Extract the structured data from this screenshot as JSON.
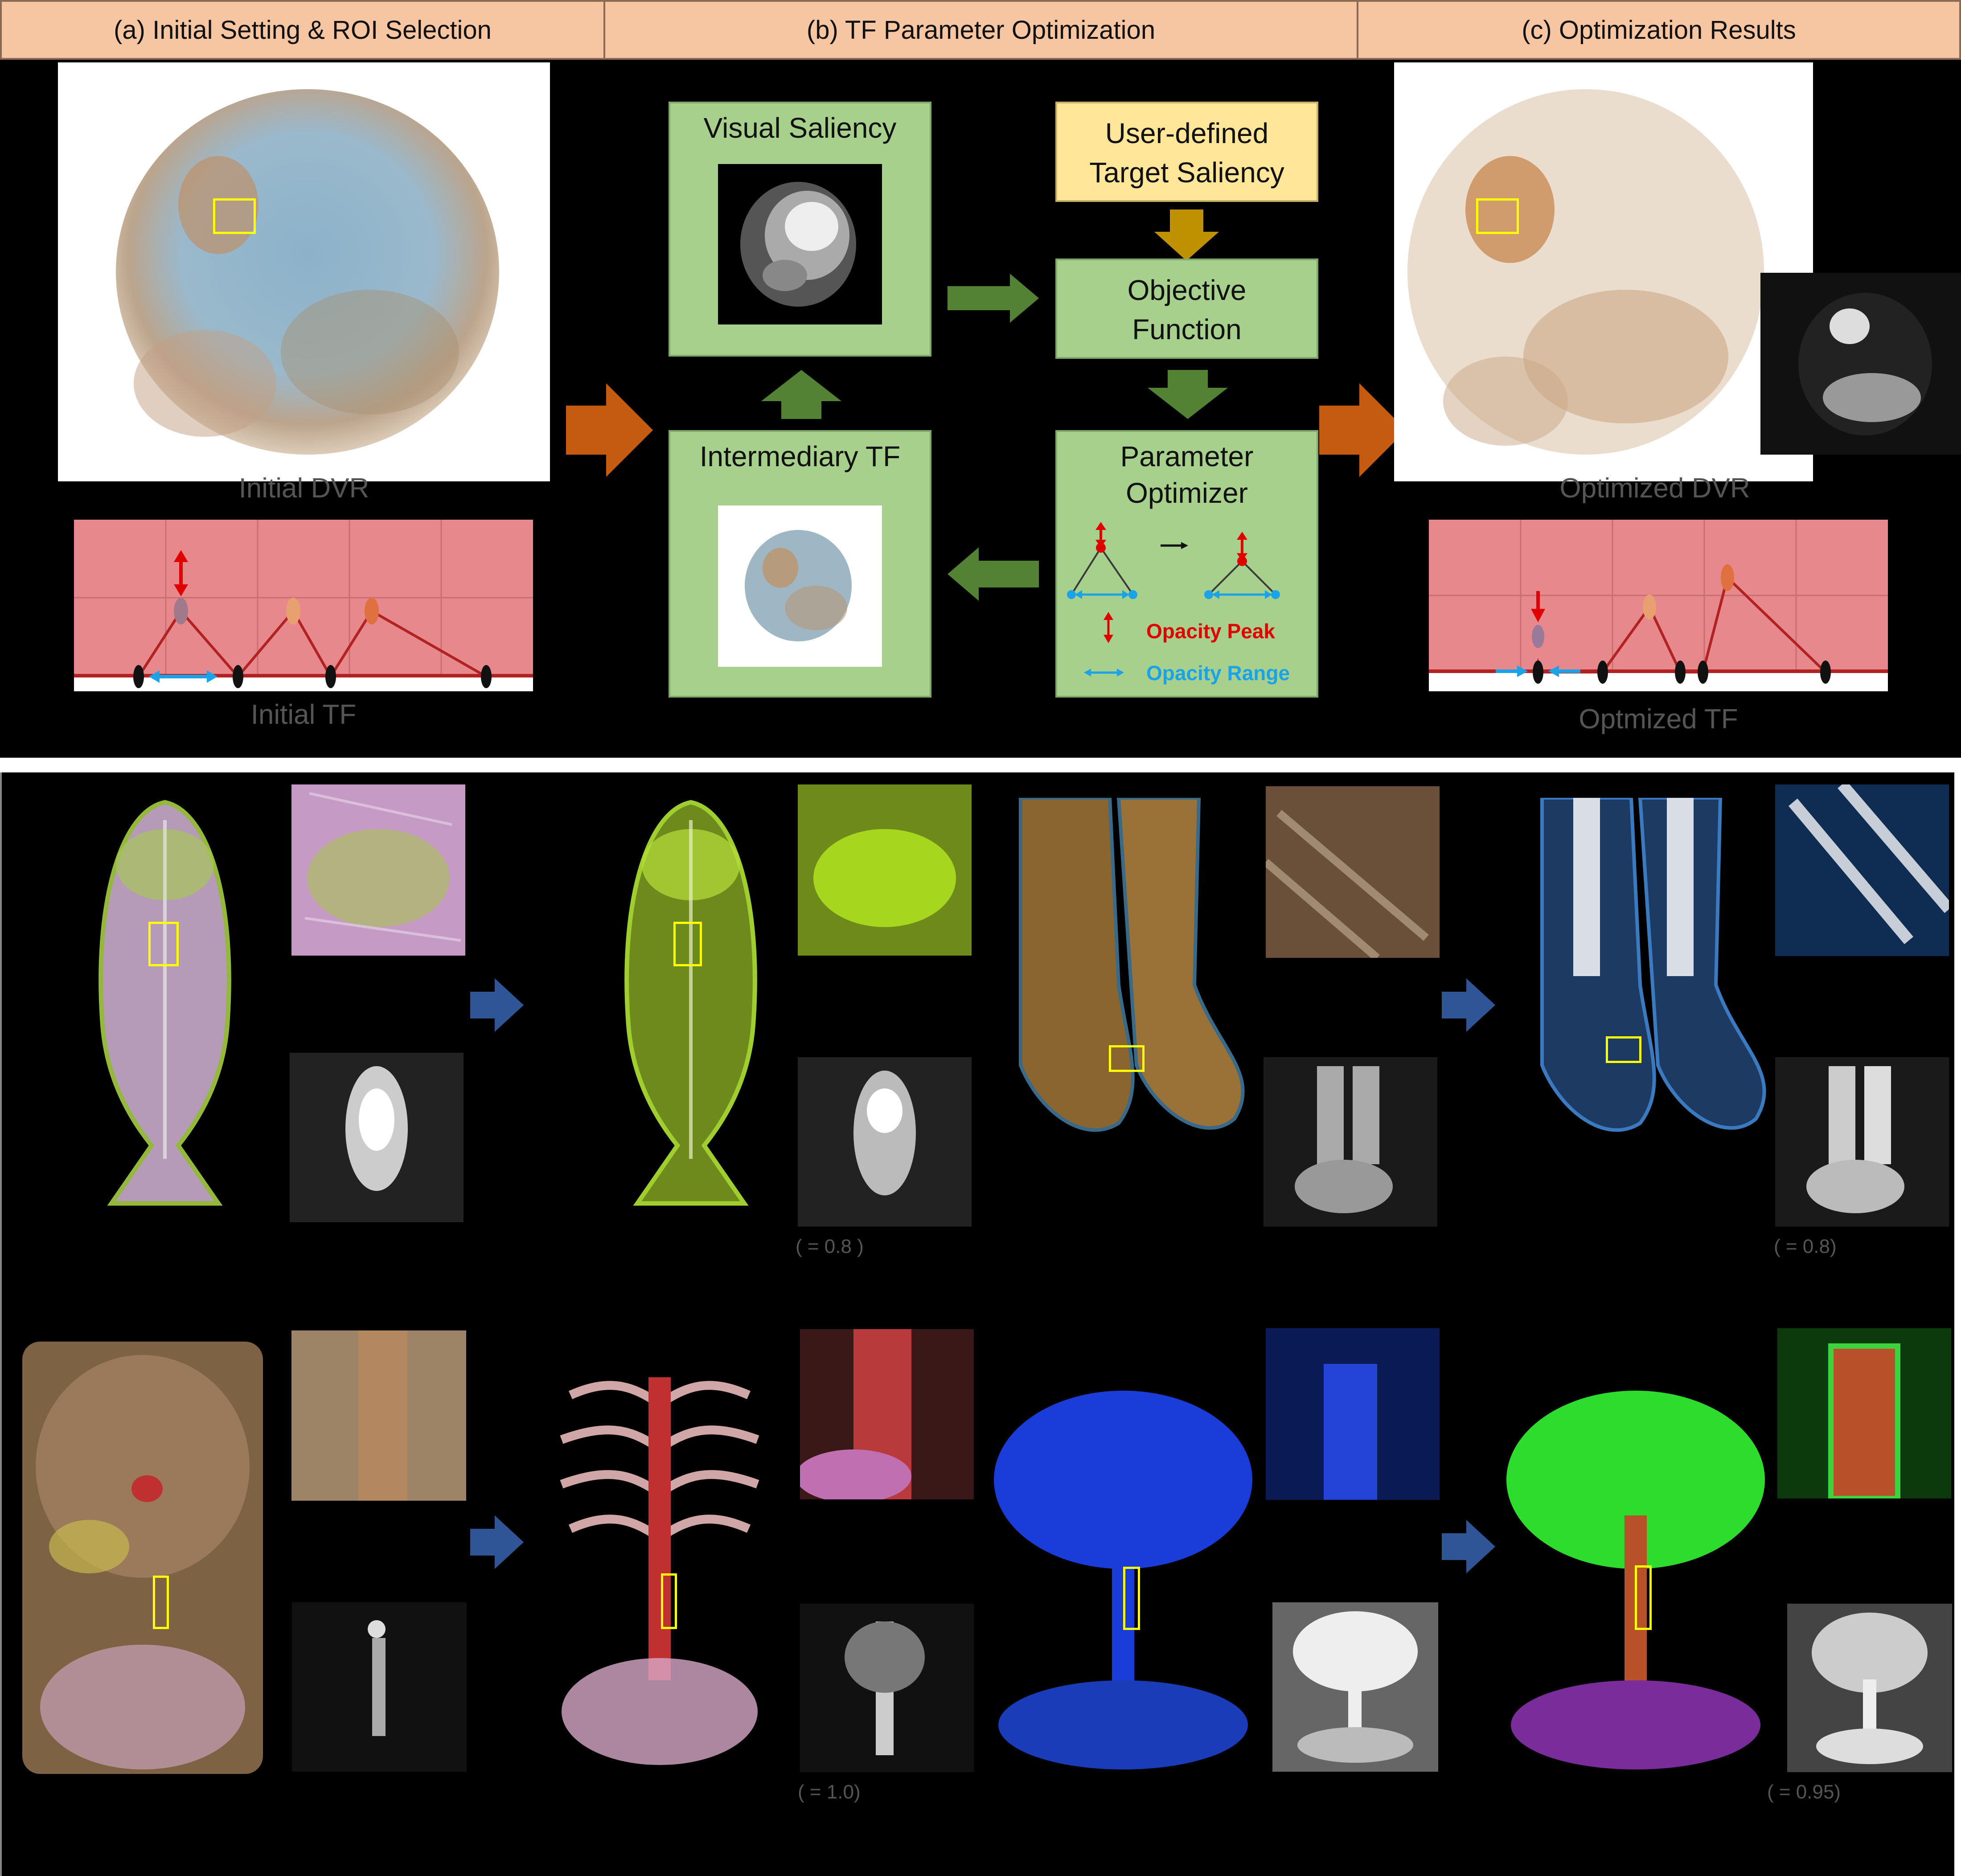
{
  "top": {
    "headers": [
      "(a) Initial Setting & ROI Selection",
      "(b) TF Parameter Optimization",
      "(c) Optimization Results"
    ],
    "initial_dvr_label": "Initial DVR",
    "initial_tf_label": "Initial TF",
    "optimized_dvr_label": "Optimized DVR",
    "optimized_tf_label": "Optmized TF",
    "visual_saliency": "Visual Saliency",
    "user_defined_line1": "User-defined",
    "user_defined_line2": "Target Saliency",
    "objective_line1": "Objective",
    "objective_line2": "Function",
    "intermediary_tf": "Intermediary TF",
    "param_line1": "Parameter",
    "param_line2": "Optimizer",
    "opacity_peak": "Opacity Peak",
    "opacity_range": "Opacity Range"
  },
  "bottom": {
    "captions": [
      "(    = 0.8 )",
      "(    = 0.8)",
      "(    = 1.0)",
      "(    = 0.95)"
    ]
  },
  "colors": {
    "header_bg": "#f6c6a3",
    "green_box": "#a8d08d",
    "yellow_box": "#ffe699",
    "orange_arrow": "#c55a11",
    "green_arrow": "#548235",
    "blue_arrow": "#2f5597",
    "gold_arrow": "#bf9000",
    "tf_bg": "#e7898c",
    "roi": "#ffff00"
  }
}
